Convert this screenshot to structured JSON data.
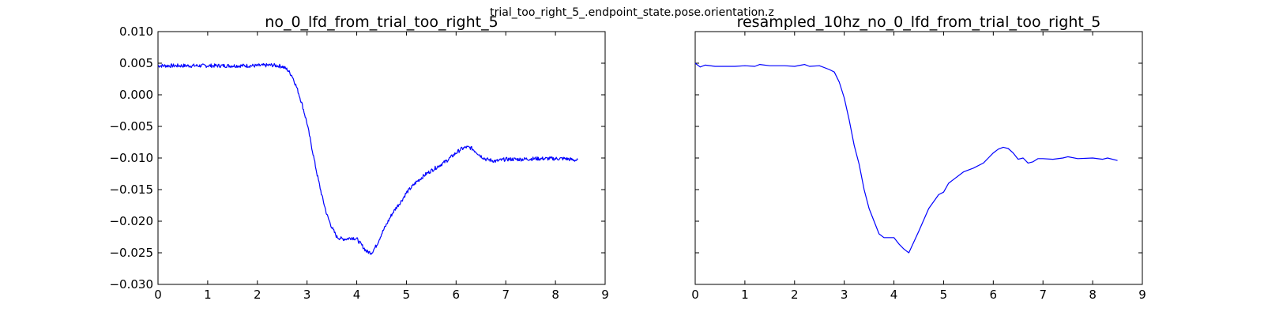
{
  "figure": {
    "suptitle": "trial_too_right_5_.endpoint_state.pose.orientation.z"
  },
  "chart_data": [
    {
      "type": "line",
      "title": "no_0_lfd_from_trial_too_right_5",
      "xlabel": "",
      "ylabel": "",
      "xlim": [
        0,
        9
      ],
      "ylim": [
        -0.03,
        0.01
      ],
      "xticks": [
        "0",
        "1",
        "2",
        "3",
        "4",
        "5",
        "6",
        "7",
        "8",
        "9"
      ],
      "yticks": [
        "0.010",
        "0.005",
        "0.000",
        "−0.005",
        "−0.010",
        "−0.015",
        "−0.020",
        "−0.025",
        "−0.030"
      ],
      "grid": false,
      "color": "#0000ff",
      "style": "noisy-step",
      "series": [
        {
          "x": [
            0.0,
            0.5,
            1.0,
            1.5,
            2.0,
            2.3,
            2.5,
            2.6,
            2.7,
            2.8,
            2.9,
            3.0,
            3.1,
            3.2,
            3.3,
            3.4,
            3.5,
            3.6,
            3.7,
            3.8,
            3.9,
            4.0,
            4.1,
            4.2,
            4.3,
            4.4,
            4.5,
            4.6,
            4.7,
            4.8,
            4.9,
            5.0,
            5.2,
            5.4,
            5.6,
            5.8,
            6.0,
            6.1,
            6.2,
            6.3,
            6.4,
            6.5,
            6.6,
            6.8,
            7.0,
            7.3,
            7.6,
            7.9,
            8.2,
            8.45
          ],
          "y": [
            0.0046,
            0.0046,
            0.0046,
            0.0046,
            0.0046,
            0.0047,
            0.0045,
            0.004,
            0.003,
            0.001,
            -0.0015,
            -0.0045,
            -0.0085,
            -0.0125,
            -0.016,
            -0.019,
            -0.021,
            -0.0225,
            -0.0228,
            -0.0228,
            -0.0226,
            -0.0228,
            -0.0238,
            -0.0248,
            -0.025,
            -0.0238,
            -0.022,
            -0.0205,
            -0.019,
            -0.0178,
            -0.0168,
            -0.0155,
            -0.0138,
            -0.0125,
            -0.0115,
            -0.0105,
            -0.0092,
            -0.0086,
            -0.0083,
            -0.0084,
            -0.009,
            -0.0097,
            -0.0102,
            -0.0105,
            -0.0102,
            -0.0102,
            -0.0101,
            -0.0101,
            -0.0101,
            -0.0104
          ]
        }
      ]
    },
    {
      "type": "line",
      "title": "resampled_10hz_no_0_lfd_from_trial_too_right_5",
      "xlabel": "",
      "ylabel": "",
      "xlim": [
        0,
        9
      ],
      "ylim": [
        -0.03,
        0.01
      ],
      "xticks": [
        "0",
        "1",
        "2",
        "3",
        "4",
        "5",
        "6",
        "7",
        "8",
        "9"
      ],
      "yticks": [],
      "grid": false,
      "color": "#0000ff",
      "style": "smooth",
      "series": [
        {
          "x": [
            0.0,
            0.1,
            0.2,
            0.4,
            0.6,
            0.8,
            1.0,
            1.2,
            1.3,
            1.5,
            1.8,
            2.0,
            2.2,
            2.3,
            2.5,
            2.7,
            2.8,
            2.9,
            3.0,
            3.1,
            3.2,
            3.3,
            3.4,
            3.5,
            3.6,
            3.7,
            3.8,
            3.9,
            4.0,
            4.1,
            4.2,
            4.3,
            4.5,
            4.7,
            4.9,
            5.0,
            5.1,
            5.2,
            5.4,
            5.6,
            5.8,
            5.9,
            6.0,
            6.1,
            6.2,
            6.3,
            6.4,
            6.5,
            6.6,
            6.7,
            6.8,
            6.9,
            7.0,
            7.2,
            7.4,
            7.5,
            7.7,
            8.0,
            8.2,
            8.3,
            8.5
          ],
          "y": [
            0.005,
            0.0044,
            0.0047,
            0.0045,
            0.0045,
            0.0045,
            0.0046,
            0.0045,
            0.0048,
            0.0046,
            0.0046,
            0.0045,
            0.0048,
            0.0045,
            0.0046,
            0.004,
            0.0036,
            0.002,
            -0.0005,
            -0.004,
            -0.008,
            -0.011,
            -0.015,
            -0.018,
            -0.02,
            -0.022,
            -0.0226,
            -0.0226,
            -0.0226,
            -0.0236,
            -0.0244,
            -0.025,
            -0.0216,
            -0.018,
            -0.0158,
            -0.0154,
            -0.014,
            -0.0134,
            -0.0122,
            -0.0116,
            -0.0108,
            -0.01,
            -0.0092,
            -0.0086,
            -0.0083,
            -0.0085,
            -0.0092,
            -0.0102,
            -0.01,
            -0.0108,
            -0.0106,
            -0.0101,
            -0.0101,
            -0.0102,
            -0.01,
            -0.0098,
            -0.0101,
            -0.01,
            -0.0102,
            -0.01,
            -0.0104
          ]
        }
      ]
    }
  ]
}
